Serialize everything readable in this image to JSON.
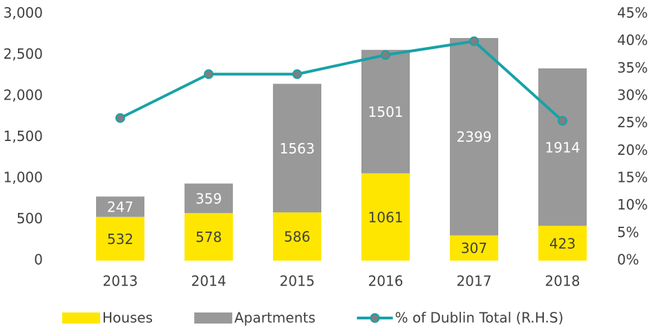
{
  "chart_data": {
    "type": "bar",
    "stacked": true,
    "categories": [
      "2013",
      "2014",
      "2015",
      "2016",
      "2017",
      "2018"
    ],
    "series": [
      {
        "name": "Houses",
        "type": "bar",
        "color": "#FFE600",
        "values": [
          532,
          578,
          586,
          1061,
          307,
          423
        ]
      },
      {
        "name": "Apartments",
        "type": "bar",
        "color": "#999999",
        "values": [
          247,
          359,
          1563,
          1501,
          2399,
          1914
        ]
      },
      {
        "name": "% of Dublin Total (R.H.S)",
        "type": "line",
        "axis": "y2",
        "color": "#17A2A8",
        "marker_color": "#7F7F7F",
        "values": [
          26,
          34,
          34,
          37.5,
          40,
          25.5
        ]
      }
    ],
    "ylim": [
      0,
      3000
    ],
    "yticks": [
      0,
      500,
      {
        "value": 1000,
        "label": "1,000"
      },
      {
        "value": 1500,
        "label": "1,500"
      },
      {
        "value": 2000,
        "label": "2,000"
      },
      {
        "value": 2500,
        "label": "2,500"
      },
      {
        "value": 3000,
        "label": "3,000"
      }
    ],
    "y2lim": [
      0,
      45
    ],
    "y2ticks": [
      {
        "value": 0,
        "label": "0%"
      },
      {
        "value": 5,
        "label": "5%"
      },
      {
        "value": 10,
        "label": "10%"
      },
      {
        "value": 15,
        "label": "15%"
      },
      {
        "value": 20,
        "label": "20%"
      },
      {
        "value": 25,
        "label": "25%"
      },
      {
        "value": 30,
        "label": "30%"
      },
      {
        "value": 35,
        "label": "35%"
      },
      {
        "value": 40,
        "label": "40%"
      },
      {
        "value": 45,
        "label": "45%"
      }
    ],
    "grid": false,
    "legend": "bottom"
  }
}
